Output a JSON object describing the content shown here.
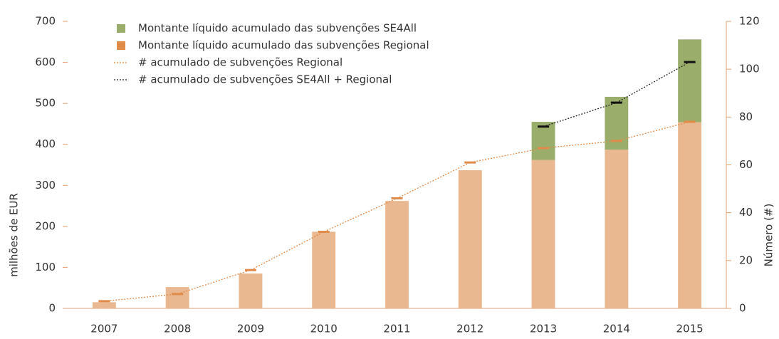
{
  "chart_data": {
    "type": "bar",
    "categories": [
      "2007",
      "2008",
      "2009",
      "2010",
      "2011",
      "2012",
      "2013",
      "2014",
      "2015"
    ],
    "ylabel": "milhões de EUR",
    "y2label": "Número (#)",
    "ylim": [
      0,
      700
    ],
    "yticks": [
      0,
      100,
      200,
      300,
      400,
      500,
      600,
      700
    ],
    "y2lim": [
      0,
      120
    ],
    "y2ticks": [
      0,
      20,
      40,
      60,
      80,
      100,
      120
    ],
    "legend": "upper left",
    "series": [
      {
        "name": "Montante líquido acumulado das subvenções SE4All",
        "type": "bar",
        "stack": "base-top",
        "color": "#9aad6a",
        "values": [
          0,
          0,
          0,
          0,
          0,
          0,
          93,
          129,
          202
        ]
      },
      {
        "name": "Montante líquido acumulado das subvenções Regional",
        "type": "bar",
        "stack": "base",
        "color": "#eab890",
        "values": [
          15,
          52,
          85,
          187,
          262,
          337,
          362,
          387,
          454
        ]
      },
      {
        "name": "# acumulado de subvenções Regional",
        "type": "line",
        "axis": "y2",
        "color": "#e08b4a",
        "marker_color": "#e08b4a",
        "values": [
          3,
          6,
          16,
          32,
          46,
          61,
          67,
          70,
          78
        ]
      },
      {
        "name": "# acumulado de subvenções SE4All + Regional",
        "type": "line",
        "axis": "y2",
        "color": "#222222",
        "marker_color": "#111111",
        "values": [
          null,
          null,
          null,
          null,
          null,
          null,
          76,
          86,
          103
        ]
      }
    ]
  }
}
